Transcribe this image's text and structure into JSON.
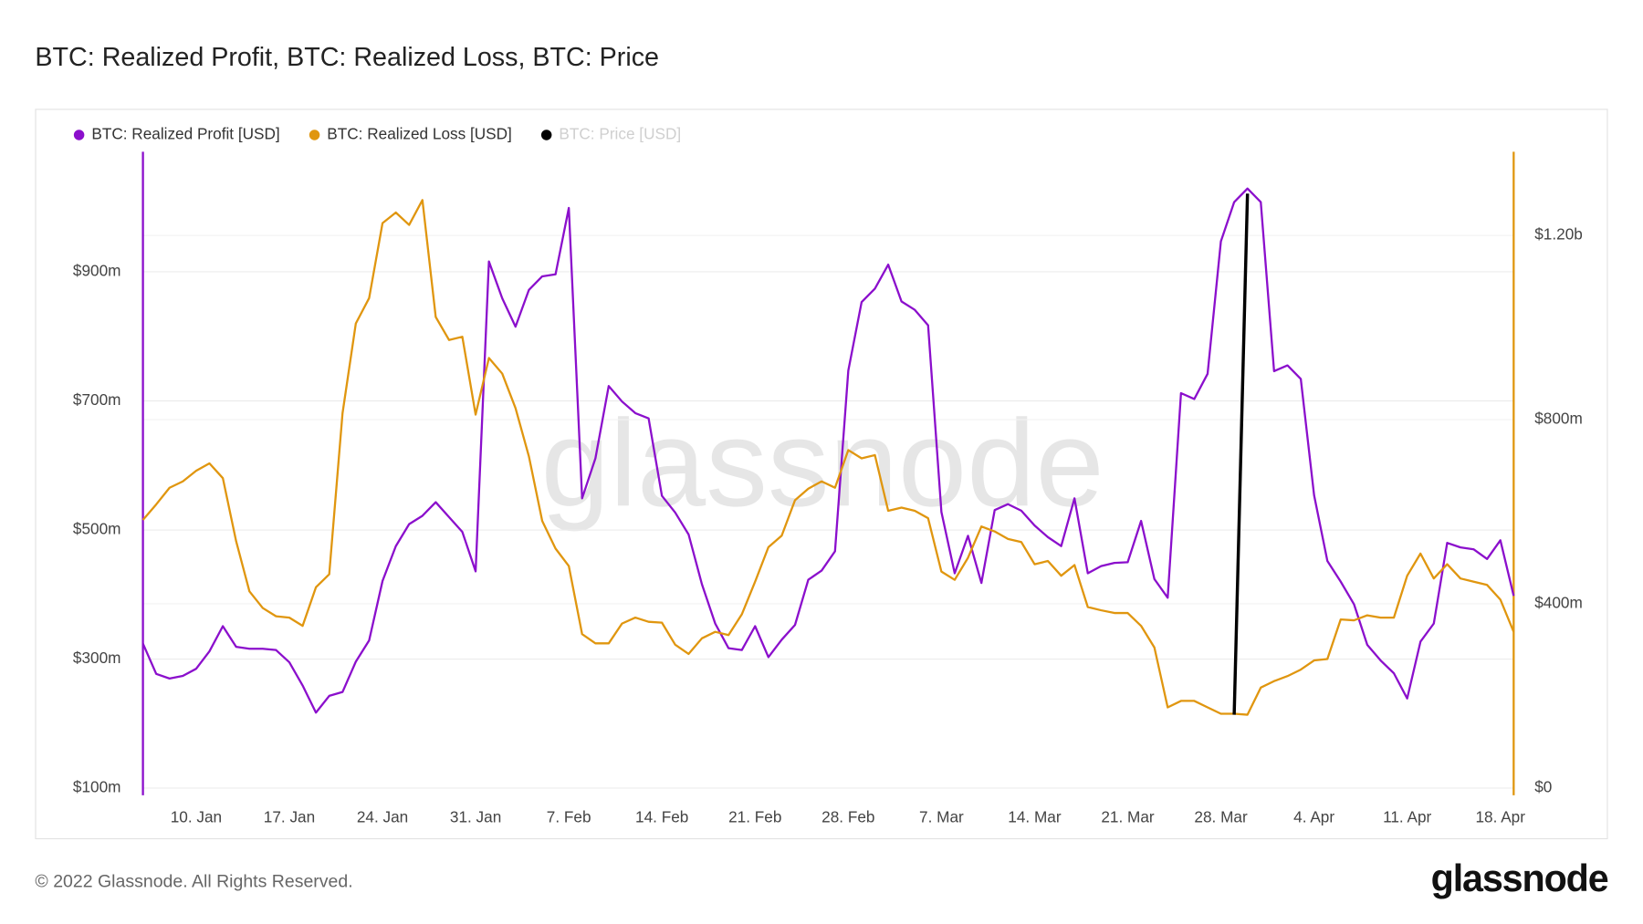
{
  "chart_data": {
    "type": "line",
    "title": "BTC: Realized Profit, BTC: Realized Loss, BTC: Price",
    "watermark": "glassnode",
    "footer": "© 2022 Glassnode. All Rights Reserved.",
    "brand": "glassnode",
    "x": [
      "6. Jan",
      "7. Jan",
      "8. Jan",
      "9. Jan",
      "10. Jan",
      "11. Jan",
      "12. Jan",
      "13. Jan",
      "14. Jan",
      "15. Jan",
      "16. Jan",
      "17. Jan",
      "18. Jan",
      "19. Jan",
      "20. Jan",
      "21. Jan",
      "22. Jan",
      "23. Jan",
      "24. Jan",
      "25. Jan",
      "26. Jan",
      "27. Jan",
      "28. Jan",
      "29. Jan",
      "30. Jan",
      "31. Jan",
      "1. Feb",
      "2. Feb",
      "3. Feb",
      "4. Feb",
      "5. Feb",
      "6. Feb",
      "7. Feb",
      "8. Feb",
      "9. Feb",
      "10. Feb",
      "11. Feb",
      "12. Feb",
      "13. Feb",
      "14. Feb",
      "15. Feb",
      "16. Feb",
      "17. Feb",
      "18. Feb",
      "19. Feb",
      "20. Feb",
      "21. Feb",
      "22. Feb",
      "23. Feb",
      "24. Feb",
      "25. Feb",
      "26. Feb",
      "27. Feb",
      "28. Feb",
      "1. Mar",
      "2. Mar",
      "3. Mar",
      "4. Mar",
      "5. Mar",
      "6. Mar",
      "7. Mar",
      "8. Mar",
      "9. Mar",
      "10. Mar",
      "11. Mar",
      "12. Mar",
      "13. Mar",
      "14. Mar",
      "15. Mar",
      "16. Mar",
      "17. Mar",
      "18. Mar",
      "19. Mar",
      "20. Mar",
      "21. Mar",
      "22. Mar",
      "23. Mar",
      "24. Mar",
      "25. Mar",
      "26. Mar",
      "27. Mar",
      "28. Mar",
      "29. Mar",
      "30. Mar",
      "31. Mar",
      "1. Apr",
      "2. Apr",
      "3. Apr",
      "4. Apr",
      "5. Apr",
      "6. Apr",
      "7. Apr",
      "8. Apr",
      "9. Apr",
      "10. Apr",
      "11. Apr",
      "12. Apr",
      "13. Apr",
      "14. Apr",
      "15. Apr",
      "16. Apr",
      "17. Apr",
      "18. Apr",
      "19. Apr"
    ],
    "xticks": [
      "10. Jan",
      "17. Jan",
      "24. Jan",
      "31. Jan",
      "7. Feb",
      "14. Feb",
      "21. Feb",
      "28. Feb",
      "7. Mar",
      "14. Mar",
      "21. Mar",
      "28. Mar",
      "4. Apr",
      "11. Apr",
      "18. Apr"
    ],
    "ylim": [
      89,
      1086
    ],
    "yticks": [
      {
        "value": 100,
        "label": "$100m"
      },
      {
        "value": 300,
        "label": "$300m"
      },
      {
        "value": 500,
        "label": "$500m"
      },
      {
        "value": 700,
        "label": "$700m"
      },
      {
        "value": 900,
        "label": "$900m"
      }
    ],
    "y2lim": [
      -16,
      1382
    ],
    "y2ticks": [
      {
        "value": 0,
        "label": "$0"
      },
      {
        "value": 400,
        "label": "$400m"
      },
      {
        "value": 800,
        "label": "$800m"
      },
      {
        "value": 1200,
        "label": "$1.20b"
      }
    ],
    "grid": true,
    "series": [
      {
        "name": "BTC: Realized Profit [USD]",
        "color": "#8b0fcc",
        "axis": "y",
        "values": [
          324,
          277,
          270,
          274,
          285,
          312,
          351,
          319,
          316,
          316,
          314,
          295,
          259,
          217,
          243,
          249,
          296,
          329,
          421,
          475,
          509,
          522,
          543,
          520,
          497,
          436,
          916,
          859,
          815,
          872,
          893,
          896,
          999,
          549,
          611,
          723,
          699,
          681,
          673,
          553,
          527,
          493,
          416,
          355,
          317,
          314,
          351,
          303,
          330,
          353,
          423,
          437,
          467,
          747,
          853,
          874,
          911,
          854,
          841,
          817,
          528,
          433,
          491,
          418,
          531,
          540,
          530,
          507,
          489,
          475,
          549,
          433,
          444,
          449,
          450,
          514,
          424,
          395,
          712,
          703,
          742,
          947,
          1008,
          1029,
          1008,
          746,
          755,
          734,
          554,
          452,
          420,
          385,
          322,
          298,
          278,
          239,
          327,
          355,
          480,
          473,
          470,
          455,
          484,
          398
        ]
      },
      {
        "name": "BTC: Realized Loss [USD]",
        "color": "#e0960f",
        "axis": "y2",
        "values": [
          582,
          616,
          652,
          666,
          689,
          705,
          673,
          536,
          427,
          391,
          373,
          370,
          352,
          436,
          464,
          814,
          1009,
          1064,
          1227,
          1250,
          1223,
          1277,
          1023,
          973,
          980,
          811,
          934,
          900,
          825,
          720,
          580,
          520,
          482,
          334,
          314,
          314,
          357,
          370,
          361,
          359,
          311,
          291,
          325,
          339,
          332,
          377,
          448,
          523,
          548,
          625,
          650,
          666,
          652,
          734,
          716,
          723,
          602,
          609,
          602,
          586,
          470,
          452,
          500,
          568,
          557,
          541,
          534,
          486,
          493,
          461,
          484,
          393,
          386,
          380,
          380,
          352,
          305,
          175,
          189,
          189,
          175,
          161,
          161,
          159,
          218,
          232,
          243,
          257,
          277,
          280,
          366,
          364,
          375,
          370,
          370,
          461,
          509,
          455,
          486,
          455,
          448,
          441,
          409,
          339
        ]
      },
      {
        "name": "BTC: Price [USD]",
        "color": "#000000",
        "axis": "y2",
        "legend_muted": true,
        "values": [
          null,
          null,
          null,
          null,
          null,
          null,
          null,
          null,
          null,
          null,
          null,
          null,
          null,
          null,
          null,
          null,
          null,
          null,
          null,
          null,
          null,
          null,
          null,
          null,
          null,
          null,
          null,
          null,
          null,
          null,
          null,
          null,
          null,
          null,
          null,
          null,
          null,
          null,
          null,
          null,
          null,
          null,
          null,
          null,
          null,
          null,
          null,
          null,
          null,
          null,
          null,
          null,
          null,
          null,
          null,
          null,
          null,
          null,
          null,
          null,
          null,
          null,
          null,
          null,
          null,
          null,
          null,
          null,
          null,
          null,
          null,
          null,
          null,
          null,
          null,
          null,
          null,
          null,
          null,
          null,
          null,
          null,
          159,
          1291,
          null,
          null,
          null,
          null,
          null,
          null,
          null,
          null,
          null,
          null,
          null,
          null,
          null,
          null,
          null,
          null,
          null,
          null,
          null,
          null
        ]
      }
    ]
  }
}
